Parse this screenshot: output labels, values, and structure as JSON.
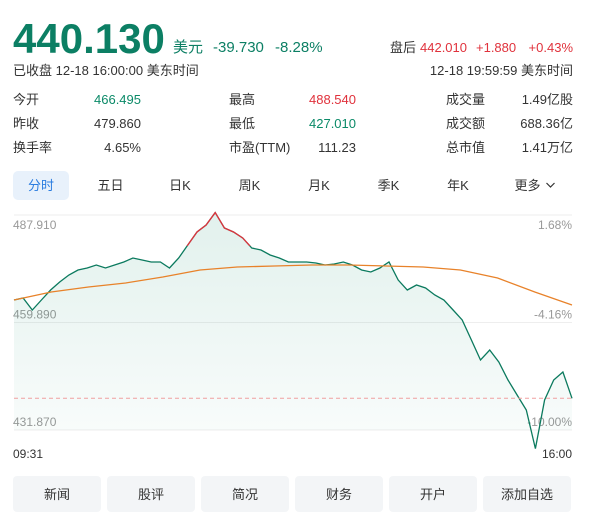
{
  "quote": {
    "price": "440.130",
    "currency": "美元",
    "change": "-39.730",
    "change_pct": "-8.28%",
    "after_hours_label": "盘后",
    "after_hours_price": "442.010",
    "after_hours_change": "+1.880",
    "after_hours_pct": "+0.43%",
    "status": "已收盘 12-18 16:00:00 美东时间",
    "after_hours_time": "12-18 19:59:59 美东时间"
  },
  "stats": [
    {
      "label": "今开",
      "value": "466.495",
      "color": "#0b8a68"
    },
    {
      "label": "最高",
      "value": "488.540",
      "color": "#e0323c"
    },
    {
      "label": "成交量",
      "value": "1.49亿股",
      "color": "#333333"
    },
    {
      "label": "昨收",
      "value": "479.860",
      "color": "#333333"
    },
    {
      "label": "最低",
      "value": "427.010",
      "color": "#0b8a68"
    },
    {
      "label": "成交额",
      "value": "688.36亿",
      "color": "#333333"
    },
    {
      "label": "换手率",
      "value": "4.65%",
      "color": "#333333"
    },
    {
      "label": "市盈(TTM)",
      "value": "111.23",
      "color": "#333333"
    },
    {
      "label": "总市值",
      "value": "1.41万亿",
      "color": "#333333"
    }
  ],
  "tabs": [
    "分时",
    "五日",
    "日K",
    "周K",
    "月K",
    "季K",
    "年K",
    "更多"
  ],
  "chart_data": {
    "type": "line",
    "x_labels": [
      "09:31",
      "16:00"
    ],
    "ylim": [
      431.87,
      487.91
    ],
    "yticks": [
      {
        "value": 431.87,
        "label": "431.870"
      },
      {
        "value": 459.89,
        "label": "459.890"
      },
      {
        "value": 487.91,
        "label": "487.910"
      }
    ],
    "y2lim": [
      -10.0,
      1.68
    ],
    "y2ticks": [
      {
        "value": -10.0,
        "label": "-10.00%"
      },
      {
        "value": -4.16,
        "label": "-4.16%"
      },
      {
        "value": 1.68,
        "label": "1.68%"
      }
    ],
    "baseline": 479.86,
    "last_price": 440.13,
    "series": [
      {
        "color": "#0b7a5e",
        "up_color": "#e0323c",
        "values": [
          465.75,
          466.27,
          463.15,
          465.75,
          468.36,
          470.44,
          472.27,
          473.57,
          474.09,
          474.88,
          474.09,
          474.88,
          475.66,
          476.7,
          476.18,
          475.66,
          475.66,
          474.09,
          476.7,
          480.09,
          483.48,
          485.3,
          488.54,
          484.52,
          483.48,
          481.91,
          479.3,
          478.78,
          477.48,
          476.7,
          475.66,
          475.66,
          475.66,
          475.4,
          474.88,
          475.14,
          475.66,
          474.88,
          473.57,
          473.05,
          474.09,
          475.66,
          470.96,
          468.36,
          469.66,
          468.88,
          467.05,
          465.75,
          463.15,
          460.53,
          455.32,
          450.11,
          452.71,
          449.59,
          444.89,
          440.98,
          437.07,
          427.01,
          439.68,
          444.89,
          446.98,
          440.13
        ]
      },
      {
        "color": "#e8822a",
        "values": [
          465.75,
          467.84,
          469.14,
          470.18,
          471.75,
          473.57,
          474.35,
          474.61,
          474.88,
          474.88,
          474.61,
          474.35,
          473.57,
          471.49,
          467.84,
          464.45
        ]
      }
    ]
  },
  "buttons": [
    "新闻",
    "股评",
    "简况",
    "财务",
    "开户",
    "添加自选"
  ]
}
